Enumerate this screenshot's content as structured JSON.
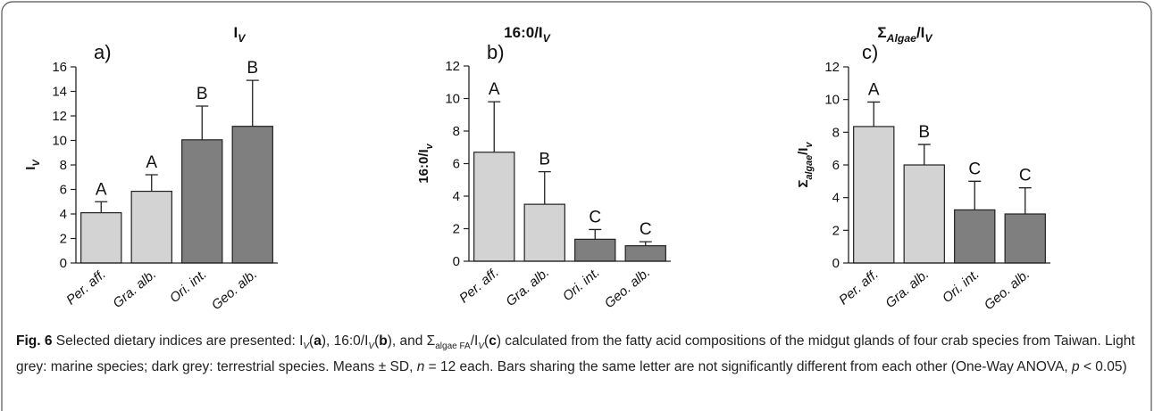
{
  "chart_data": [
    {
      "type": "bar",
      "panel": "a)",
      "title": [
        "I",
        "V"
      ],
      "ylabel": [
        "I",
        "V"
      ],
      "categories": [
        "Per. aff.",
        "Gra. alb.",
        "Ori. int.",
        "Geo. alb."
      ],
      "values": [
        4.1,
        5.85,
        10.05,
        11.15
      ],
      "errors": [
        0.9,
        1.35,
        2.75,
        3.75
      ],
      "annotations": [
        "A",
        "A",
        "B",
        "B"
      ],
      "colors": [
        "#d3d3d3",
        "#d3d3d3",
        "#7f7f7f",
        "#7f7f7f"
      ],
      "ylim": [
        0,
        16
      ],
      "yticks": [
        0,
        2,
        4,
        6,
        8,
        10,
        12,
        14,
        16
      ]
    },
    {
      "type": "bar",
      "panel": "b)",
      "title": [
        "16:0/I",
        "V"
      ],
      "ylabel": [
        "16:0/I",
        "v"
      ],
      "categories": [
        "Per. aff.",
        "Gra. alb.",
        "Ori. int.",
        "Geo. alb."
      ],
      "values": [
        6.7,
        3.5,
        1.35,
        0.95
      ],
      "errors": [
        3.1,
        2.0,
        0.6,
        0.25
      ],
      "annotations": [
        "A",
        "B",
        "C",
        "C"
      ],
      "colors": [
        "#d3d3d3",
        "#d3d3d3",
        "#7f7f7f",
        "#7f7f7f"
      ],
      "ylim": [
        0,
        12
      ],
      "yticks": [
        0,
        2,
        4,
        6,
        8,
        10,
        12
      ]
    },
    {
      "type": "bar",
      "panel": "c)",
      "title": [
        "Σ",
        "Algae",
        "/I",
        "V"
      ],
      "ylabel": [
        "Σ",
        "algae",
        "/I",
        "v"
      ],
      "categories": [
        "Per. aff.",
        "Gra. alb.",
        "Ori. int.",
        "Geo. alb."
      ],
      "values": [
        8.35,
        6.0,
        3.25,
        3.0
      ],
      "errors": [
        1.5,
        1.25,
        1.75,
        1.6
      ],
      "annotations": [
        "A",
        "B",
        "C",
        "C"
      ],
      "colors": [
        "#d3d3d3",
        "#d3d3d3",
        "#7f7f7f",
        "#7f7f7f"
      ],
      "ylim": [
        0,
        12
      ],
      "yticks": [
        0,
        2,
        4,
        6,
        8,
        10,
        12
      ]
    }
  ],
  "caption": {
    "parts": [
      "Fig. 6",
      " Selected dietary indices are presented: I",
      "V",
      "(",
      "a",
      "), 16:0/I",
      "V",
      "(",
      "b",
      "), and Σ",
      "algae FA",
      "/I",
      "V",
      "(",
      "c",
      ") calculated from the fatty acid compositions of the midgut glands of four crab species from Taiwan. Light grey: marine species; dark grey: terrestrial species. Means ± SD, ",
      "n",
      " = 12 each. Bars sharing the same letter are not significantly different from each other (One-Way ANOVA, ",
      "p",
      " < 0.05)"
    ]
  }
}
